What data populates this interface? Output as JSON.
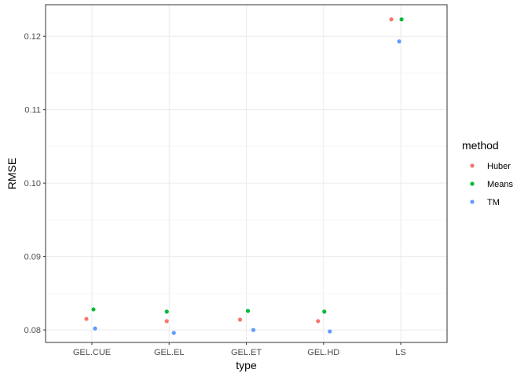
{
  "chart_data": {
    "type": "scatter",
    "xlabel": "type",
    "ylabel": "RMSE",
    "categories": [
      "GEL.CUE",
      "GEL.EL",
      "GEL.ET",
      "GEL.HD",
      "LS"
    ],
    "ylim": [
      0.0783,
      0.1243
    ],
    "yticks": [
      0.08,
      0.09,
      0.1,
      0.11,
      0.12
    ],
    "ytick_labels": [
      "0.08",
      "0.09",
      "0.10",
      "0.11",
      "0.12"
    ],
    "grid": true,
    "legend": {
      "title": "method",
      "placement": "right"
    },
    "series": [
      {
        "name": "Huber",
        "color": "#F8766D",
        "values": [
          0.0815,
          0.0812,
          0.0814,
          0.0812,
          0.1223
        ]
      },
      {
        "name": "Means",
        "color": "#00BA38",
        "values": [
          0.0828,
          0.0825,
          0.0826,
          0.0825,
          0.1223
        ]
      },
      {
        "name": "TM",
        "color": "#619CFF",
        "values": [
          0.0802,
          0.0796,
          0.08,
          0.0798,
          0.1193
        ]
      }
    ]
  }
}
